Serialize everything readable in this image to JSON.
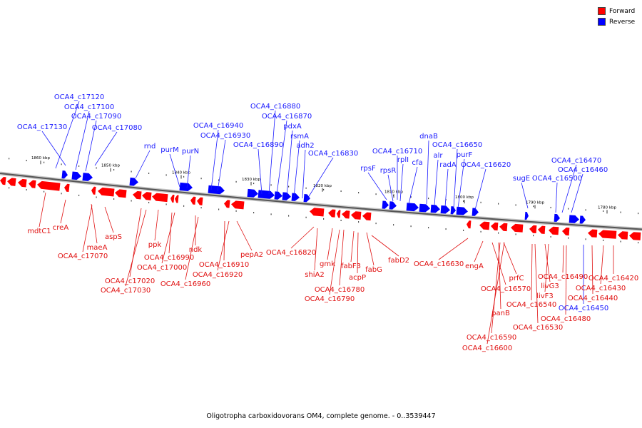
{
  "legend": {
    "forward_label": "Forward",
    "reverse_label": "Reverse",
    "forward_color": "#ff0000",
    "reverse_color": "#0000ff"
  },
  "caption": "Oligotropha carboxidovorans OM4, complete genome. - 0..3539447",
  "scale_labels": [
    "1860 kbp",
    "1850 kbp",
    "1840 kbp",
    "1830 kbp",
    "1820 kbp",
    "1810 kbp",
    "1800 kbp",
    "1790 kbp",
    "1780 kbp"
  ],
  "reverse_gene_labels": [
    "OCA4_c17120",
    "OCA4_c17100",
    "OCA4_c17090",
    "OCA4_c17080",
    "OCA4_c17130",
    "rnd",
    "purM",
    "purN",
    "OCA4_c16940",
    "OCA4_c16930",
    "OCA4_c16880",
    "OCA4_c16870",
    "pdxA",
    "rsmA",
    "OCA4_c16890",
    "adh2",
    "OCA4_c16830",
    "rpsF",
    "rpsR",
    "OCA4_c16710",
    "rplI",
    "cfa",
    "dnaB",
    "alr",
    "radA",
    "OCA4_c16650",
    "purF",
    "OCA4_c16620",
    "sugE",
    "OCA4_c16470",
    "OCA4_c16460",
    "OCA4_c16500",
    "OCA4_c16450"
  ],
  "forward_gene_labels": [
    "mdtC1",
    "creA",
    "maeA",
    "OCA4_c17070",
    "aspS",
    "OCA4_c17020",
    "OCA4_c17030",
    "ppk",
    "OCA4_c16990",
    "OCA4_c17000",
    "ndk",
    "OCA4_c16960",
    "OCA4_c16910",
    "OCA4_c16920",
    "pepA2",
    "OCA4_c16820",
    "shiA2",
    "gmk",
    "OCA4_c16780",
    "OCA4_c16790",
    "fabF3",
    "acpP",
    "fabG",
    "fabD2",
    "OCA4_c16630",
    "engA",
    "OCA4_c16570",
    "prfC",
    "panB",
    "OCA4_c16590",
    "OCA4_c16600",
    "OCA4_c16540",
    "OCA4_c16530",
    "livG3",
    "livF3",
    "OCA4_c16490",
    "OCA4_c16480",
    "OCA4_c16440",
    "OCA4_c16430",
    "OCA4_c16420"
  ]
}
